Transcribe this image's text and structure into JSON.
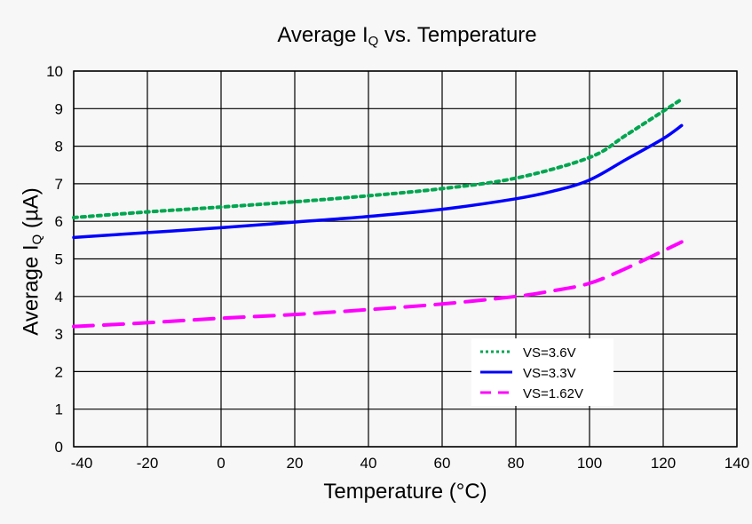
{
  "chart_data": {
    "type": "line",
    "title": {
      "main": "Average I",
      "sub": "Q",
      "rest": " vs. Temperature"
    },
    "xlabel": "Temperature (°C)",
    "ylabel": {
      "main": "Average I",
      "sub": "Q",
      "rest": " (µA)"
    },
    "xlim": [
      -40,
      140
    ],
    "ylim": [
      0,
      10
    ],
    "xticks": [
      -40,
      -20,
      0,
      20,
      40,
      60,
      80,
      100,
      120,
      140
    ],
    "yticks": [
      0,
      1,
      2,
      3,
      4,
      5,
      6,
      7,
      8,
      9,
      10
    ],
    "grid": true,
    "legend_position": "lower-right",
    "series": [
      {
        "name": "VS=3.6V",
        "color": "#00a650",
        "style": "dotted",
        "x": [
          -40,
          -20,
          0,
          20,
          40,
          60,
          80,
          100,
          110,
          125
        ],
        "y": [
          6.1,
          6.25,
          6.38,
          6.52,
          6.68,
          6.87,
          7.15,
          7.7,
          8.3,
          9.25
        ]
      },
      {
        "name": "VS=3.3V",
        "color": "#0000ff",
        "style": "solid",
        "x": [
          -40,
          -20,
          0,
          20,
          40,
          60,
          80,
          90,
          100,
          110,
          120,
          125
        ],
        "y": [
          5.57,
          5.7,
          5.83,
          5.98,
          6.13,
          6.32,
          6.6,
          6.8,
          7.1,
          7.65,
          8.2,
          8.55
        ]
      },
      {
        "name": "VS=1.62V",
        "color": "#ff00ff",
        "style": "dashed",
        "x": [
          -40,
          -20,
          0,
          20,
          40,
          60,
          80,
          90,
          100,
          110,
          125
        ],
        "y": [
          3.2,
          3.3,
          3.42,
          3.52,
          3.65,
          3.8,
          4.0,
          4.15,
          4.35,
          4.75,
          5.45
        ]
      }
    ]
  }
}
